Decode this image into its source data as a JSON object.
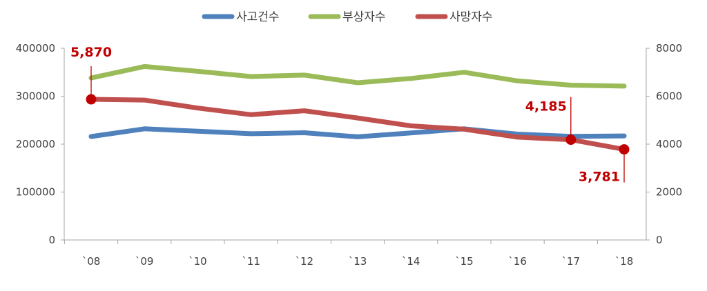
{
  "chart_data": {
    "type": "line",
    "categories": [
      "`08",
      "`09",
      "`10",
      "`11",
      "`12",
      "`13",
      "`14",
      "`15",
      "`16",
      "`17",
      "`18"
    ],
    "y_left": {
      "ticks": [
        "0",
        "100000",
        "200000",
        "300000",
        "400000"
      ],
      "min": 0,
      "max": 400000
    },
    "y_right": {
      "ticks": [
        "0",
        "2000",
        "4000",
        "6000",
        "8000"
      ],
      "min": 0,
      "max": 8000
    },
    "legend_position": "top-center",
    "series": [
      {
        "name": "사고건수",
        "axis": "left",
        "color": "#4f81bd",
        "values": [
          215800,
          231900,
          226900,
          221700,
          223700,
          215300,
          223500,
          232000,
          220900,
          216300,
          217100
        ]
      },
      {
        "name": "부상자수",
        "axis": "left",
        "color": "#9bbb59",
        "values": [
          338000,
          362000,
          352000,
          341000,
          344000,
          328000,
          337000,
          350000,
          332000,
          323000,
          321000
        ]
      },
      {
        "name": "사망자수",
        "axis": "right",
        "color": "#c0504d",
        "values": [
          5870,
          5838,
          5505,
          5229,
          5392,
          5092,
          4762,
          4621,
          4292,
          4185,
          3781
        ]
      }
    ],
    "annotations": [
      {
        "text": "5,870",
        "series": 2,
        "index": 0
      },
      {
        "text": "4,185",
        "series": 2,
        "index": 9
      },
      {
        "text": "3,781",
        "series": 2,
        "index": 10
      }
    ]
  }
}
